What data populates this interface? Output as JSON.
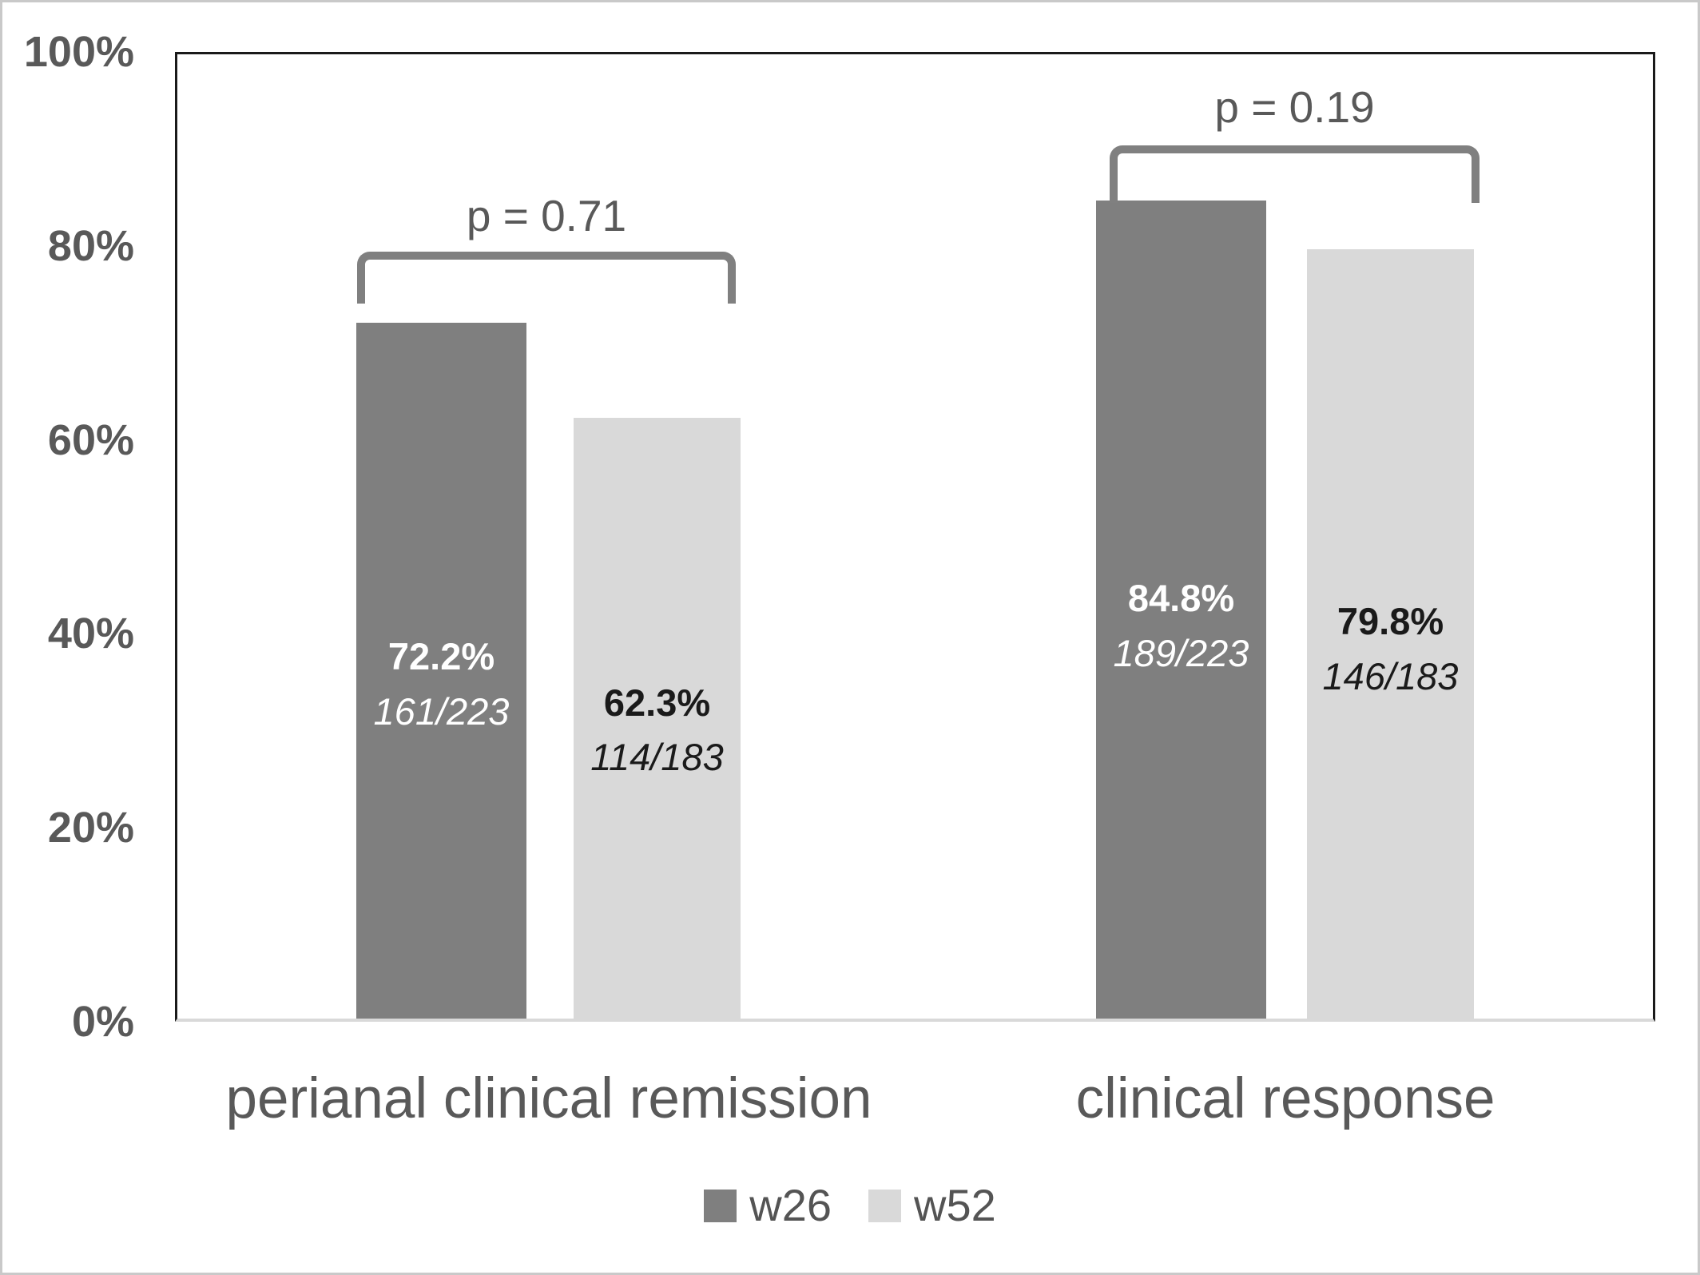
{
  "chart_data": {
    "type": "bar",
    "title": "",
    "categories": [
      "perianal clinical remission",
      "clinical response"
    ],
    "series": [
      {
        "name": "w26",
        "color": "#7f7f7f",
        "text_color": "#ffffff",
        "values": [
          72.2,
          84.8
        ],
        "value_labels": [
          "72.2%",
          "84.8%"
        ],
        "count_labels": [
          "161/223",
          "189/223"
        ]
      },
      {
        "name": "w52",
        "color": "#d9d9d9",
        "text_color": "#1a1a1a",
        "values": [
          62.3,
          79.8
        ],
        "value_labels": [
          "62.3%",
          "79.8%"
        ],
        "count_labels": [
          "114/183",
          "146/183"
        ]
      }
    ],
    "p_values": [
      {
        "category": "perianal clinical remission",
        "value": 0.71,
        "label": "p = 0.71"
      },
      {
        "category": "clinical response",
        "value": 0.19,
        "label": "p = 0.19"
      }
    ],
    "y_axis": {
      "min": 0,
      "max": 100,
      "ticks": [
        "100%",
        "80%",
        "60%",
        "40%",
        "20%",
        "0%"
      ],
      "tick_values": [
        100,
        80,
        60,
        40,
        20,
        0
      ]
    },
    "legend": [
      {
        "label": "w26",
        "color": "#7f7f7f"
      },
      {
        "label": "w52",
        "color": "#d9d9d9"
      }
    ],
    "legend_position": "bottom",
    "grid": false,
    "colors": {
      "axis_text": "#595959",
      "category_text": "#595959",
      "p_text": "#595959",
      "bracket": "#808080",
      "plot_border": "#1a1a1a",
      "axis_line": "#d9d9d9"
    }
  }
}
